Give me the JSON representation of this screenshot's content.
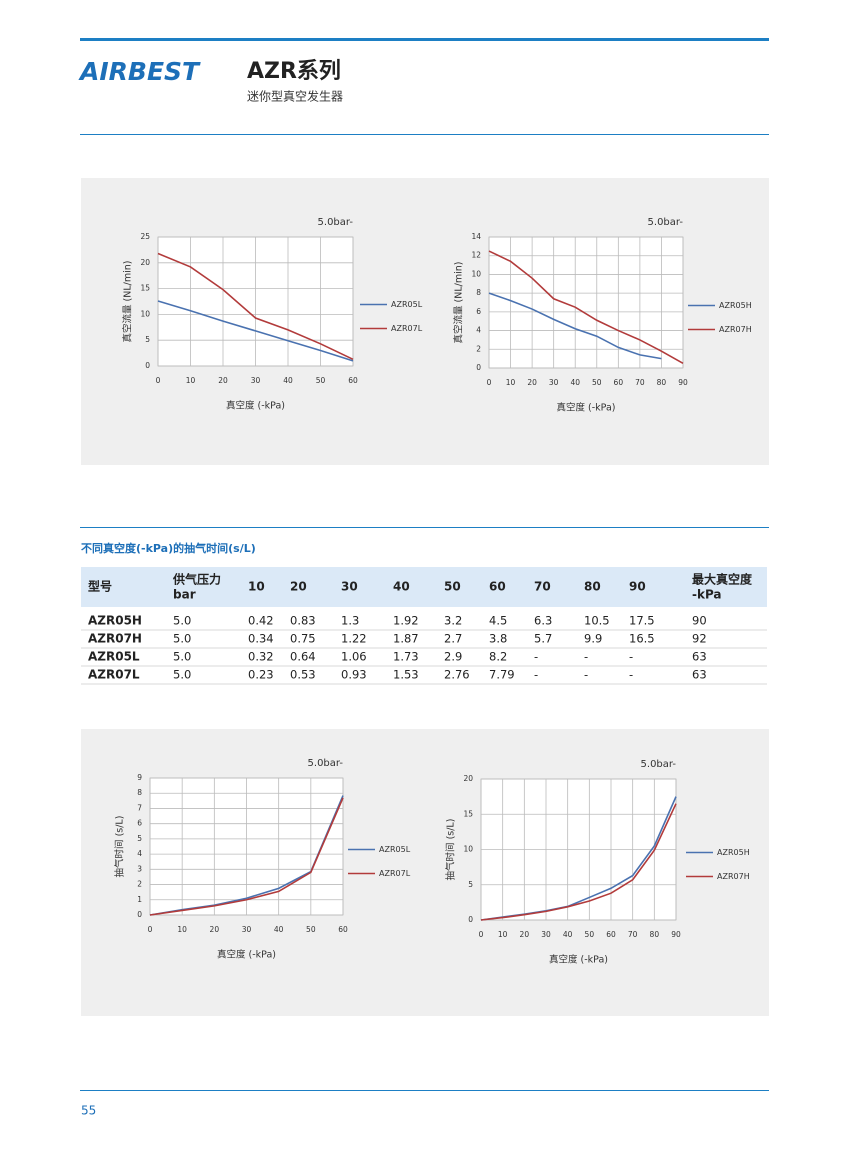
{
  "header": {
    "logo": "AIRBEST",
    "title": "AZR系列",
    "subtitle": "迷你型真空发生器"
  },
  "chart_data": [
    {
      "type": "line",
      "title": "5.0bar-",
      "x_label": "真空度 (-kPa)",
      "y_label": "真空流量 (NL/min)",
      "x": [
        0,
        10,
        20,
        30,
        40,
        50,
        60
      ],
      "xlim": [
        0,
        60
      ],
      "xticks": [
        0,
        10,
        20,
        30,
        40,
        50,
        60
      ],
      "ylim": [
        0,
        25
      ],
      "yticks": [
        0,
        5,
        10,
        15,
        20,
        25
      ],
      "grid": true,
      "legend": "right",
      "series": [
        {
          "name": "AZR05L",
          "color": "#4a72b0",
          "values": [
            12.6,
            10.7,
            8.7,
            6.8,
            4.9,
            3.0,
            1.0
          ]
        },
        {
          "name": "AZR07L",
          "color": "#b23b3b",
          "values": [
            21.8,
            19.2,
            14.8,
            9.3,
            7.0,
            4.3,
            1.3
          ]
        }
      ]
    },
    {
      "type": "line",
      "title": "5.0bar-",
      "x_label": "真空度 (-kPa)",
      "y_label": "真空流量 (NL/min)",
      "x": [
        0,
        10,
        20,
        30,
        40,
        50,
        60,
        70,
        80,
        90
      ],
      "xlim": [
        0,
        90
      ],
      "xticks": [
        0,
        10,
        20,
        30,
        40,
        50,
        60,
        70,
        80,
        90
      ],
      "ylim": [
        0,
        14
      ],
      "yticks": [
        0,
        2,
        4,
        6,
        8,
        10,
        12,
        14
      ],
      "grid": true,
      "legend": "right",
      "series": [
        {
          "name": "AZR05H",
          "color": "#4a72b0",
          "values": [
            8.0,
            7.2,
            6.3,
            5.2,
            4.2,
            3.4,
            2.2,
            1.4,
            1.0,
            null
          ]
        },
        {
          "name": "AZR07H",
          "color": "#b23b3b",
          "values": [
            12.5,
            11.4,
            9.6,
            7.4,
            6.5,
            5.1,
            4.0,
            3.0,
            1.8,
            0.5
          ]
        }
      ]
    },
    {
      "type": "line",
      "title": "5.0bar-",
      "x_label": "真空度 (-kPa)",
      "y_label": "抽气时间 (s/L)",
      "x": [
        0,
        10,
        20,
        30,
        40,
        50,
        60
      ],
      "xlim": [
        0,
        60
      ],
      "xticks": [
        0,
        10,
        20,
        30,
        40,
        50,
        60
      ],
      "ylim": [
        0,
        9
      ],
      "yticks": [
        0,
        1,
        2,
        3,
        4,
        5,
        6,
        7,
        8,
        9
      ],
      "grid": true,
      "legend": "right",
      "series": [
        {
          "name": "AZR05L",
          "color": "#4a72b0",
          "values": [
            0,
            0.35,
            0.65,
            1.1,
            1.75,
            2.85,
            7.85
          ]
        },
        {
          "name": "AZR07L",
          "color": "#b23b3b",
          "values": [
            0,
            0.3,
            0.6,
            1.0,
            1.55,
            2.8,
            7.7
          ]
        }
      ]
    },
    {
      "type": "line",
      "title": "5.0bar-",
      "x_label": "真空度 (-kPa)",
      "y_label": "抽气时间 (s/L)",
      "x": [
        0,
        10,
        20,
        30,
        40,
        50,
        60,
        70,
        80,
        90
      ],
      "xlim": [
        0,
        90
      ],
      "xticks": [
        0,
        10,
        20,
        30,
        40,
        50,
        60,
        70,
        80,
        90
      ],
      "ylim": [
        0,
        20
      ],
      "yticks": [
        0,
        5,
        10,
        15,
        20
      ],
      "grid": true,
      "legend": "right",
      "series": [
        {
          "name": "AZR05H",
          "color": "#4a72b0",
          "values": [
            0,
            0.42,
            0.83,
            1.3,
            1.92,
            3.2,
            4.5,
            6.3,
            10.5,
            17.5
          ]
        },
        {
          "name": "AZR07H",
          "color": "#b23b3b",
          "values": [
            0,
            0.34,
            0.75,
            1.22,
            1.87,
            2.7,
            3.8,
            5.7,
            9.9,
            16.5
          ]
        }
      ]
    }
  ],
  "table": {
    "title": "不同真空度(-kPa)的抽气时间(s/L)",
    "header": [
      [
        "型号"
      ],
      [
        "供气压力",
        "bar"
      ],
      [
        "10"
      ],
      [
        "20"
      ],
      [
        "30"
      ],
      [
        "40"
      ],
      [
        "50"
      ],
      [
        "60"
      ],
      [
        "70"
      ],
      [
        "80"
      ],
      [
        "90"
      ],
      [
        "最大真空度",
        "-kPa"
      ]
    ],
    "rows": [
      [
        "AZR05H",
        "5.0",
        "0.42",
        "0.83",
        "1.3",
        "1.92",
        "3.2",
        "4.5",
        "6.3",
        "10.5",
        "17.5",
        "90"
      ],
      [
        "AZR07H",
        "5.0",
        "0.34",
        "0.75",
        "1.22",
        "1.87",
        "2.7",
        "3.8",
        "5.7",
        "9.9",
        "16.5",
        "92"
      ],
      [
        "AZR05L",
        "5.0",
        "0.32",
        "0.64",
        "1.06",
        "1.73",
        "2.9",
        "8.2",
        "-",
        "-",
        "-",
        "63"
      ],
      [
        "AZR07L",
        "5.0",
        "0.23",
        "0.53",
        "0.93",
        "1.53",
        "2.76",
        "7.79",
        "-",
        "-",
        "-",
        "63"
      ]
    ]
  },
  "page_number": "55"
}
